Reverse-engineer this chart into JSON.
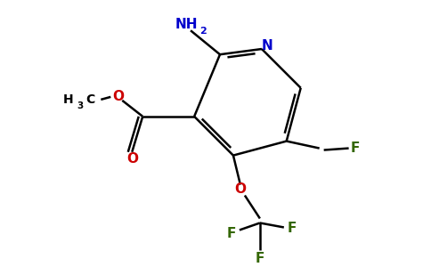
{
  "background": "#ffffff",
  "bond_color": "#000000",
  "bond_width": 1.8,
  "figsize": [
    4.84,
    3.0
  ],
  "dpi": 100,
  "colors": {
    "N": "#0000cc",
    "O": "#cc0000",
    "F": "#336600",
    "C": "#000000"
  }
}
